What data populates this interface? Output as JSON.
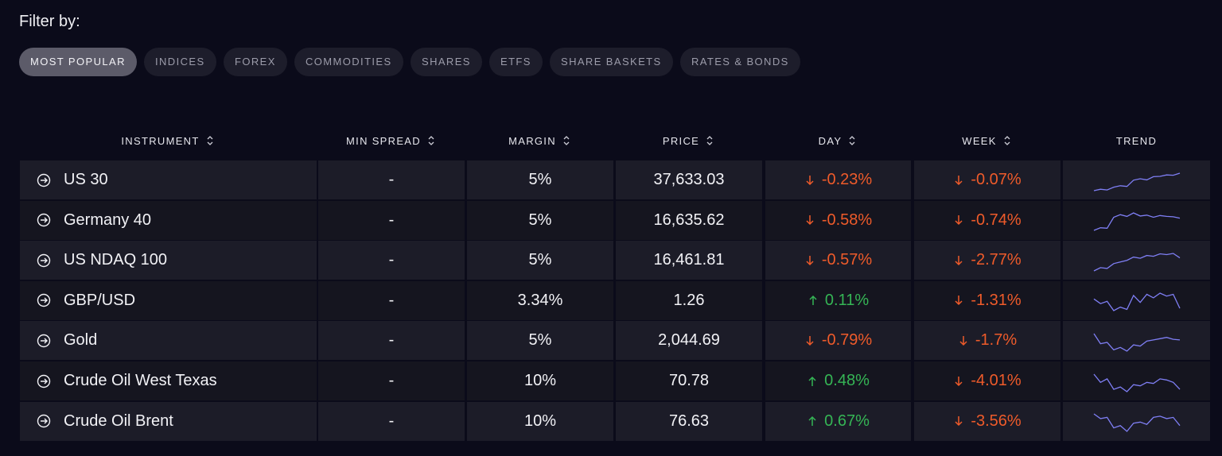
{
  "filter": {
    "label": "Filter by:",
    "tabs": [
      "MOST POPULAR",
      "INDICES",
      "FOREX",
      "COMMODITIES",
      "SHARES",
      "ETFS",
      "SHARE BASKETS",
      "RATES & BONDS"
    ],
    "active": 0
  },
  "table": {
    "columns": [
      "INSTRUMENT",
      "MIN SPREAD",
      "MARGIN",
      "PRICE",
      "DAY",
      "WEEK",
      "TREND"
    ],
    "rows": [
      [
        "US 30",
        "-",
        "5%",
        "37,633.03",
        "-0.23%",
        "-0.07%"
      ],
      [
        "Germany 40",
        "-",
        "5%",
        "16,635.62",
        "-0.58%",
        "-0.74%"
      ],
      [
        "US NDAQ 100",
        "-",
        "5%",
        "16,461.81",
        "-0.57%",
        "-2.77%"
      ],
      [
        "GBP/USD",
        "-",
        "3.34%",
        "1.26",
        "0.11%",
        "-1.31%"
      ],
      [
        "Gold",
        "-",
        "5%",
        "2,044.69",
        "-0.79%",
        "-1.7%"
      ],
      [
        "Crude Oil West Texas",
        "-",
        "10%",
        "70.78",
        "0.48%",
        "-4.01%"
      ],
      [
        "Crude Oil Brent",
        "-",
        "10%",
        "76.63",
        "0.67%",
        "-3.56%"
      ]
    ],
    "trends": [
      [
        0,
        0.4,
        0.2,
        1,
        1.4,
        1.2,
        3,
        3.4,
        3.1,
        4,
        4.1,
        4.5,
        4.4,
        5
      ],
      [
        0,
        0.6,
        0.5,
        3,
        3.6,
        3.2,
        4,
        3.3,
        3.5,
        3,
        3.4,
        3.2,
        3.1,
        2.8
      ],
      [
        0,
        0.8,
        0.6,
        1.8,
        2.2,
        2.6,
        3.4,
        3.1,
        3.8,
        3.6,
        4.2,
        4,
        4.3,
        3.2
      ],
      [
        3,
        2.2,
        2.6,
        1,
        1.6,
        1.2,
        3.6,
        2.4,
        3.8,
        3.2,
        4,
        3.5,
        3.8,
        1.4
      ],
      [
        4,
        2.4,
        2.6,
        1.4,
        1.8,
        1.2,
        2.2,
        2,
        2.8,
        3,
        3.2,
        3.4,
        3.1,
        3
      ],
      [
        4,
        2.6,
        3.2,
        1.4,
        1.8,
        1,
        2.2,
        2,
        2.6,
        2.4,
        3.2,
        3,
        2.6,
        1.4
      ],
      [
        4,
        3.2,
        3.4,
        1.6,
        2,
        1,
        2.4,
        2.6,
        2.2,
        3.4,
        3.6,
        3.2,
        3.4,
        2
      ]
    ]
  }
}
